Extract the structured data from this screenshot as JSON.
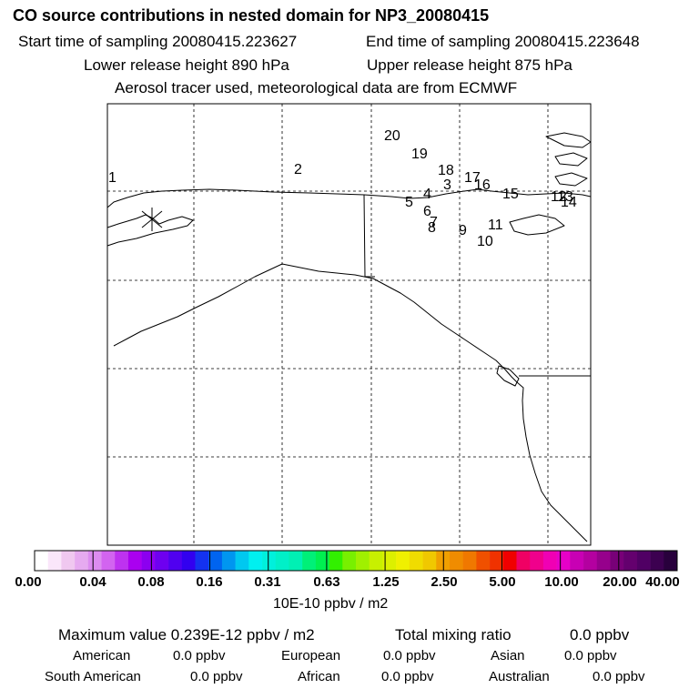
{
  "header": {
    "title": "CO  source contributions in nested domain for NP3_20080415",
    "start_time": "Start time of sampling 20080415.223627",
    "end_time": "End time of sampling 20080415.223648",
    "lower_height": "Lower release height  890 hPa",
    "upper_height": "Upper release height  875 hPa",
    "tracer_note": "Aerosol tracer used, meteorological data are from ECMWF"
  },
  "map": {
    "point_labels": [
      "1",
      "2",
      "3",
      "4",
      "5",
      "6",
      "7",
      "8",
      "9",
      "10",
      "11",
      "12",
      "13",
      "14",
      "15",
      "16",
      "17",
      "18",
      "19",
      "20"
    ],
    "colors": {
      "coastline": "#000000",
      "grid": "#000000"
    }
  },
  "colorbar": {
    "tick_labels": [
      "0.00",
      "0.04",
      "0.08",
      "0.16",
      "0.31",
      "0.63",
      "1.25",
      "2.50",
      "5.00",
      "10.00",
      "20.00",
      "40.00"
    ],
    "unit": "10E-10 ppbv / m2",
    "colors": [
      "#ffffff",
      "#fae6fa",
      "#f0c8f0",
      "#e6aaf0",
      "#dc8cf0",
      "#d264f0",
      "#be32f0",
      "#aa00f0",
      "#8c00f0",
      "#6e00f0",
      "#5000f0",
      "#3200f0",
      "#1432f0",
      "#0064f0",
      "#0096f0",
      "#00c8f0",
      "#00f0f0",
      "#00f0dc",
      "#00f0c8",
      "#00f0b4",
      "#00f078",
      "#00f050",
      "#32f000",
      "#78f000",
      "#a0f000",
      "#c8f000",
      "#dcf000",
      "#f0f000",
      "#f0dc00",
      "#f0c800",
      "#f0a000",
      "#f08c00",
      "#f07800",
      "#f05000",
      "#f03200",
      "#f00000",
      "#f00064",
      "#f0008c",
      "#f000b4",
      "#e600c8",
      "#c800b4",
      "#b400a0",
      "#96008c",
      "#780078",
      "#64006e",
      "#500064",
      "#3c0050",
      "#28003c"
    ]
  },
  "stats": {
    "max_value": "Maximum value  0.239E-12 ppbv / m2",
    "total_label": "Total mixing ratio",
    "total_value": "0.0 ppbv",
    "american_label": "American",
    "american_value": "0.0 ppbv",
    "european_label": "European",
    "european_value": "0.0 ppbv",
    "asian_label": "Asian",
    "asian_value": "0.0 ppbv",
    "south_american_label": "South American",
    "south_american_value": "0.0 ppbv",
    "african_label": "African",
    "african_value": "0.0 ppbv",
    "australian_label": "Australian",
    "australian_value": "0.0 ppbv"
  }
}
